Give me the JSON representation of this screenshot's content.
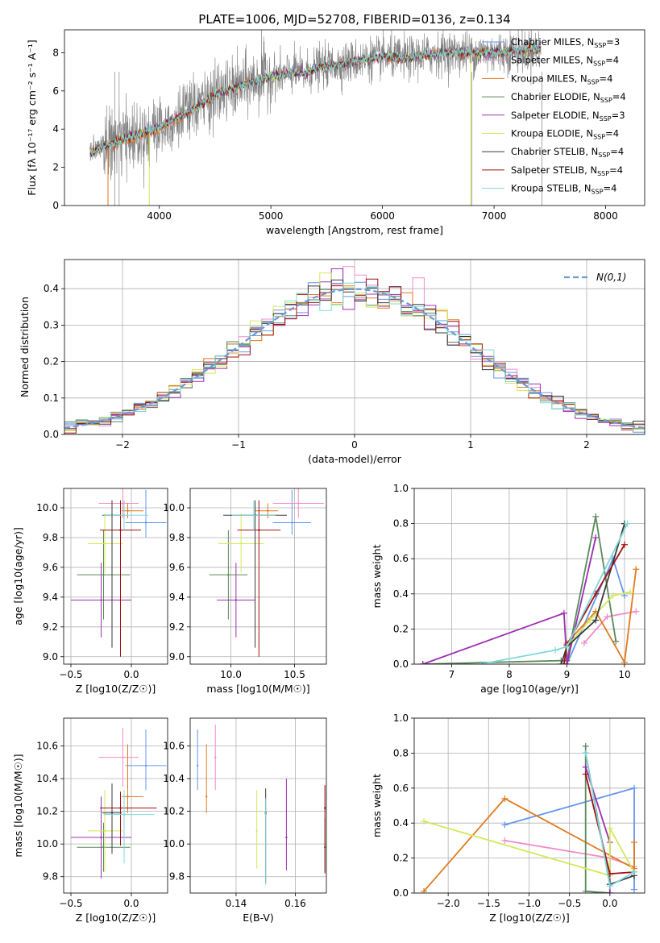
{
  "figure": {
    "title": "PLATE=1006, MJD=52708, FIBERID=0136, z=0.134"
  },
  "series_colors": {
    "Chabrier MILES": "#6495ed",
    "Salpeter MILES": "#f08cc8",
    "Kroupa MILES": "#e07a20",
    "Chabrier ELODIE": "#5a8a5a",
    "Salpeter ELODIE": "#9b30b0",
    "Kroupa ELODIE": "#d4e85a",
    "Chabrier STELIB": "#3a3a3a",
    "Salpeter STELIB": "#a01010",
    "Kroupa STELIB": "#80d8d8",
    "data": "#808080"
  },
  "legend": {
    "spectrum": [
      {
        "name": "Chabrier MILES",
        "nssp": "3"
      },
      {
        "name": "Salpeter MILES",
        "nssp": "4"
      },
      {
        "name": "Kroupa MILES",
        "nssp": "4"
      },
      {
        "name": "Chabrier ELODIE",
        "nssp": "4"
      },
      {
        "name": "Salpeter ELODIE",
        "nssp": "3"
      },
      {
        "name": "Kroupa ELODIE",
        "nssp": "4"
      },
      {
        "name": "Chabrier STELIB",
        "nssp": "4"
      },
      {
        "name": "Salpeter STELIB",
        "nssp": "4"
      },
      {
        "name": "Kroupa STELIB",
        "nssp": "4"
      }
    ],
    "histogram": "N(0,1)"
  },
  "chart_data": [
    {
      "id": "spectrum",
      "type": "line",
      "xlabel": "wavelength [Angstrom, rest frame]",
      "ylabel": "Flux [fλ 10⁻¹⁷ erg cm⁻² s⁻¹ A⁻¹]",
      "xlim": [
        3150,
        8350
      ],
      "ylim": [
        0,
        9.2
      ],
      "xticks": [
        4000,
        5000,
        6000,
        7000,
        8000
      ],
      "yticks": [
        0,
        2,
        4,
        6,
        8
      ],
      "model_anchors": {
        "x": [
          3400,
          3500,
          3600,
          3700,
          3800,
          3900,
          4000,
          4100,
          4200,
          4300,
          4400,
          4500,
          4600,
          4700,
          4800,
          4900,
          5000,
          5100,
          5200,
          5300,
          5400,
          5500,
          5600,
          5700,
          5800,
          5900,
          6000,
          6200,
          6400,
          6600,
          6800,
          7000,
          7200,
          7400
        ],
        "y": [
          2.8,
          3.1,
          3.3,
          3.5,
          3.7,
          3.9,
          4.1,
          4.4,
          4.7,
          5.1,
          5.4,
          5.8,
          6.0,
          6.2,
          6.4,
          6.6,
          6.8,
          6.8,
          7.0,
          6.9,
          7.2,
          7.3,
          7.4,
          7.5,
          7.6,
          7.7,
          7.8,
          7.7,
          7.9,
          8.0,
          8.0,
          8.0,
          8.1,
          8.2
        ]
      }
    },
    {
      "id": "residuals",
      "type": "histogram",
      "xlabel": "(data-model)/error",
      "ylabel": "Normed distribution",
      "xlim": [
        -2.5,
        2.5
      ],
      "ylim": [
        0,
        0.48
      ],
      "xticks": [
        -2,
        -1,
        0,
        1,
        2
      ],
      "yticks": [
        0.0,
        0.1,
        0.2,
        0.3,
        0.4
      ],
      "bin_width": 0.1,
      "gaussian": {
        "mean": 0,
        "sigma": 1
      }
    },
    {
      "id": "age-vs-Z",
      "type": "scatter",
      "xlabel": "Z [log10(Z/Z☉)]",
      "ylabel": "age  [log10(age/yr)]",
      "xlim": [
        -0.56,
        0.3
      ],
      "ylim": [
        8.95,
        10.13
      ],
      "xticks": [
        -0.5,
        0.0
      ],
      "yticks": [
        9.0,
        9.2,
        9.4,
        9.6,
        9.8,
        10.0
      ],
      "points": [
        {
          "series": "Chabrier MILES",
          "x": 0.12,
          "xerr": [
            0.17,
            0.17
          ],
          "y": 9.9,
          "yerr": [
            0.1,
            0.22
          ]
        },
        {
          "series": "Salpeter MILES",
          "x": -0.07,
          "xerr": [
            0.2,
            0.13
          ],
          "y": 10.03,
          "yerr": [
            0.1,
            0.1
          ]
        },
        {
          "series": "Kroupa MILES",
          "x": -0.03,
          "xerr": [
            0.05,
            0.13
          ],
          "y": 9.98,
          "yerr": [
            0.05,
            0.05
          ]
        },
        {
          "series": "Chabrier ELODIE",
          "x": -0.23,
          "xerr": [
            0.22,
            0.22
          ],
          "y": 9.55,
          "yerr": [
            0.3,
            0.3
          ]
        },
        {
          "series": "Salpeter ELODIE",
          "x": -0.25,
          "xerr": [
            0.25,
            0.25
          ],
          "y": 9.38,
          "yerr": [
            0.25,
            0.25
          ]
        },
        {
          "series": "Kroupa ELODIE",
          "x": -0.22,
          "xerr": [
            0.14,
            0.15
          ],
          "y": 9.76,
          "yerr": [
            0.2,
            0.2
          ]
        },
        {
          "series": "Chabrier STELIB",
          "x": -0.16,
          "xerr": [
            0.08,
            0.08
          ],
          "y": 9.95,
          "yerr": [
            0.89,
            0.1
          ]
        },
        {
          "series": "Salpeter STELIB",
          "x": -0.09,
          "xerr": [
            0.17,
            0.17
          ],
          "y": 9.85,
          "yerr": [
            0.85,
            0.2
          ]
        },
        {
          "series": "Kroupa STELIB",
          "x": -0.06,
          "xerr": [
            0.17,
            0.2
          ],
          "y": 9.95,
          "yerr": [
            0.1,
            0.1
          ]
        }
      ]
    },
    {
      "id": "age-vs-mass",
      "type": "scatter",
      "xlabel": "mass [log10(M/M☉)]",
      "ylabel": "",
      "xlim": [
        9.68,
        10.75
      ],
      "ylim": [
        8.95,
        10.13
      ],
      "xticks": [
        10.0,
        10.5
      ],
      "yticks": [
        9.0,
        9.2,
        9.4,
        9.6,
        9.8,
        10.0
      ],
      "points": [
        {
          "series": "Chabrier MILES",
          "x": 10.48,
          "xerr": [
            0.15,
            0.15
          ],
          "y": 9.9,
          "yerr": [
            0.08,
            0.22
          ]
        },
        {
          "series": "Salpeter MILES",
          "x": 10.53,
          "xerr": [
            0.2,
            0.2
          ],
          "y": 10.03,
          "yerr": [
            0.1,
            0.1
          ]
        },
        {
          "series": "Kroupa MILES",
          "x": 10.29,
          "xerr": [
            0.1,
            0.08
          ],
          "y": 9.98,
          "yerr": [
            0.05,
            0.05
          ]
        },
        {
          "series": "Chabrier ELODIE",
          "x": 9.98,
          "xerr": [
            0.15,
            0.15
          ],
          "y": 9.55,
          "yerr": [
            0.3,
            0.3
          ]
        },
        {
          "series": "Salpeter ELODIE",
          "x": 10.04,
          "xerr": [
            0.15,
            0.15
          ],
          "y": 9.38,
          "yerr": [
            0.25,
            0.25
          ]
        },
        {
          "series": "Kroupa ELODIE",
          "x": 10.08,
          "xerr": [
            0.18,
            0.18
          ],
          "y": 9.76,
          "yerr": [
            0.2,
            0.2
          ]
        },
        {
          "series": "Chabrier STELIB",
          "x": 10.19,
          "xerr": [
            0.25,
            0.25
          ],
          "y": 9.95,
          "yerr": [
            0.89,
            0.1
          ]
        },
        {
          "series": "Salpeter STELIB",
          "x": 10.22,
          "xerr": [
            0.17,
            0.17
          ],
          "y": 9.85,
          "yerr": [
            0.85,
            0.2
          ]
        },
        {
          "series": "Kroupa STELIB",
          "x": 10.18,
          "xerr": [
            0.17,
            0.17
          ],
          "y": 9.95,
          "yerr": [
            0.1,
            0.1
          ]
        }
      ]
    },
    {
      "id": "weight-vs-age",
      "type": "line",
      "xlabel": "age  [log10(age/yr)]",
      "ylabel": "mass weight",
      "xlim": [
        6.35,
        10.35
      ],
      "ylim": [
        0,
        1.0
      ],
      "xticks": [
        7,
        8,
        9,
        10
      ],
      "yticks": [
        0.0,
        0.2,
        0.4,
        0.6,
        0.8,
        1.0
      ],
      "series": [
        {
          "name": "Chabrier MILES",
          "x": [
            9.0,
            9.8,
            10.0
          ],
          "y": [
            0.0,
            0.6,
            0.39
          ]
        },
        {
          "name": "Salpeter MILES",
          "x": [
            9.3,
            9.7,
            10.2
          ],
          "y": [
            0.12,
            0.27,
            0.3
          ]
        },
        {
          "name": "Kroupa MILES",
          "x": [
            9.0,
            9.5,
            10.0,
            10.2
          ],
          "y": [
            0.12,
            0.3,
            0.01,
            0.54
          ]
        },
        {
          "name": "Chabrier ELODIE",
          "x": [
            6.5,
            8.9,
            9.0,
            9.5,
            9.85
          ],
          "y": [
            0.0,
            0.02,
            0.02,
            0.84,
            0.13
          ]
        },
        {
          "name": "Salpeter ELODIE",
          "x": [
            6.5,
            8.95,
            9.0,
            9.5
          ],
          "y": [
            0.0,
            0.29,
            0.0,
            0.72
          ]
        },
        {
          "name": "Kroupa ELODIE",
          "x": [
            9.0,
            9.4,
            9.8,
            10.1
          ],
          "y": [
            0.1,
            0.25,
            0.39,
            0.41
          ]
        },
        {
          "name": "Chabrier STELIB",
          "x": [
            8.9,
            9.0,
            9.5,
            10.0
          ],
          "y": [
            0.0,
            0.1,
            0.25,
            0.8
          ]
        },
        {
          "name": "Salpeter STELIB",
          "x": [
            8.95,
            9.0,
            9.5,
            10.0
          ],
          "y": [
            0.0,
            0.11,
            0.4,
            0.68
          ]
        },
        {
          "name": "Kroupa STELIB",
          "x": [
            7.5,
            8.8,
            9.0,
            10.05
          ],
          "y": [
            0.0,
            0.08,
            0.1,
            0.8
          ]
        }
      ]
    },
    {
      "id": "mass-vs-Z",
      "type": "scatter",
      "xlabel": "Z [log10(Z/Z☉)]",
      "ylabel": "mass [log10(M/M☉)]",
      "xlim": [
        -0.56,
        0.3
      ],
      "ylim": [
        9.7,
        10.77
      ],
      "xticks": [
        -0.5,
        0.0
      ],
      "yticks": [
        9.8,
        10.0,
        10.2,
        10.4,
        10.6
      ],
      "points": [
        {
          "series": "Chabrier MILES",
          "x": 0.12,
          "xerr": [
            0.17,
            0.17
          ],
          "y": 10.48,
          "yerr": [
            0.15,
            0.22
          ]
        },
        {
          "series": "Salpeter MILES",
          "x": -0.07,
          "xerr": [
            0.2,
            0.13
          ],
          "y": 10.53,
          "yerr": [
            0.18,
            0.18
          ]
        },
        {
          "series": "Kroupa MILES",
          "x": -0.03,
          "xerr": [
            0.05,
            0.13
          ],
          "y": 10.29,
          "yerr": [
            0.1,
            0.32
          ]
        },
        {
          "series": "Chabrier ELODIE",
          "x": -0.23,
          "xerr": [
            0.22,
            0.22
          ],
          "y": 9.98,
          "yerr": [
            0.15,
            0.15
          ]
        },
        {
          "series": "Salpeter ELODIE",
          "x": -0.25,
          "xerr": [
            0.25,
            0.25
          ],
          "y": 10.04,
          "yerr": [
            0.25,
            0.25
          ]
        },
        {
          "series": "Kroupa ELODIE",
          "x": -0.22,
          "xerr": [
            0.14,
            0.15
          ],
          "y": 10.08,
          "yerr": [
            0.25,
            0.25
          ]
        },
        {
          "series": "Chabrier STELIB",
          "x": -0.16,
          "xerr": [
            0.08,
            0.08
          ],
          "y": 10.19,
          "yerr": [
            0.25,
            0.18
          ]
        },
        {
          "series": "Salpeter STELIB",
          "x": -0.09,
          "xerr": [
            0.17,
            0.3
          ],
          "y": 10.22,
          "yerr": [
            0.23,
            0.1
          ]
        },
        {
          "series": "Kroupa STELIB",
          "x": -0.06,
          "xerr": [
            0.17,
            0.25
          ],
          "y": 10.18,
          "yerr": [
            0.3,
            0.15
          ]
        }
      ]
    },
    {
      "id": "mass-vs-ebv",
      "type": "scatter",
      "xlabel": "E(B-V)",
      "ylabel": "",
      "xlim": [
        0.1245,
        0.1705
      ],
      "ylim": [
        9.7,
        10.77
      ],
      "xticks": [
        0.14,
        0.16
      ],
      "yticks": [
        9.8,
        10.0,
        10.2,
        10.4,
        10.6
      ],
      "points": [
        {
          "series": "Chabrier MILES",
          "x": 0.127,
          "y": 10.48,
          "yerr": [
            0.15,
            0.22
          ]
        },
        {
          "series": "Salpeter MILES",
          "x": 0.133,
          "y": 10.53,
          "yerr": [
            0.2,
            0.2
          ]
        },
        {
          "series": "Kroupa MILES",
          "x": 0.13,
          "y": 10.29,
          "yerr": [
            0.1,
            0.32
          ]
        },
        {
          "series": "Chabrier ELODIE",
          "x": 0.17,
          "y": 9.98,
          "yerr": [
            0.15,
            0.18
          ]
        },
        {
          "series": "Salpeter ELODIE",
          "x": 0.157,
          "y": 10.04,
          "yerr": [
            0.2,
            0.36
          ]
        },
        {
          "series": "Kroupa ELODIE",
          "x": 0.147,
          "y": 10.08,
          "yerr": [
            0.23,
            0.25
          ]
        },
        {
          "series": "Chabrier STELIB",
          "x": 0.15,
          "y": 10.19,
          "yerr": [
            0.43,
            0.15
          ]
        },
        {
          "series": "Salpeter STELIB",
          "x": 0.17,
          "y": 10.22,
          "yerr": [
            0.4,
            0.14
          ]
        },
        {
          "series": "Kroupa STELIB",
          "x": 0.15,
          "y": 10.18,
          "yerr": [
            0.43,
            0.1
          ]
        }
      ]
    },
    {
      "id": "weight-vs-Z",
      "type": "line",
      "xlabel": "Z [log10(Z/Z☉)]",
      "ylabel": "mass weight",
      "xlim": [
        -2.42,
        0.43
      ],
      "ylim": [
        0,
        1.0
      ],
      "xticks": [
        -2.0,
        -1.5,
        -1.0,
        -0.5,
        0.0
      ],
      "yticks": [
        0.0,
        0.2,
        0.4,
        0.6,
        0.8,
        1.0
      ],
      "series": [
        {
          "name": "Chabrier MILES",
          "x": [
            -1.3,
            0.3,
            0.3
          ],
          "y": [
            0.39,
            0.6,
            0.02
          ]
        },
        {
          "name": "Salpeter MILES",
          "x": [
            -1.3,
            0.0,
            0.3
          ],
          "y": [
            0.3,
            0.2,
            0.15
          ]
        },
        {
          "name": "Kroupa MILES",
          "x": [
            -2.3,
            -1.3,
            0.3,
            0.3
          ],
          "y": [
            0.01,
            0.54,
            0.14,
            0.29
          ]
        },
        {
          "name": "Chabrier ELODIE",
          "x": [
            -0.3,
            -0.3,
            0.0
          ],
          "y": [
            0.84,
            0.01,
            0.0
          ]
        },
        {
          "name": "Salpeter ELODIE",
          "x": [
            -0.3,
            0.0,
            0.0
          ],
          "y": [
            0.72,
            0.29,
            0.0
          ]
        },
        {
          "name": "Kroupa ELODIE",
          "x": [
            -2.3,
            0.0,
            0.0,
            0.3
          ],
          "y": [
            0.41,
            0.1,
            0.37,
            0.12
          ]
        },
        {
          "name": "Chabrier STELIB",
          "x": [
            -0.3,
            0.0,
            0.3
          ],
          "y": [
            0.8,
            0.05,
            0.1
          ]
        },
        {
          "name": "Salpeter STELIB",
          "x": [
            -0.3,
            0.0,
            0.3
          ],
          "y": [
            0.68,
            0.11,
            0.12
          ]
        },
        {
          "name": "Kroupa STELIB",
          "x": [
            -0.3,
            0.0,
            0.3
          ],
          "y": [
            0.8,
            0.04,
            0.12
          ]
        }
      ]
    }
  ]
}
